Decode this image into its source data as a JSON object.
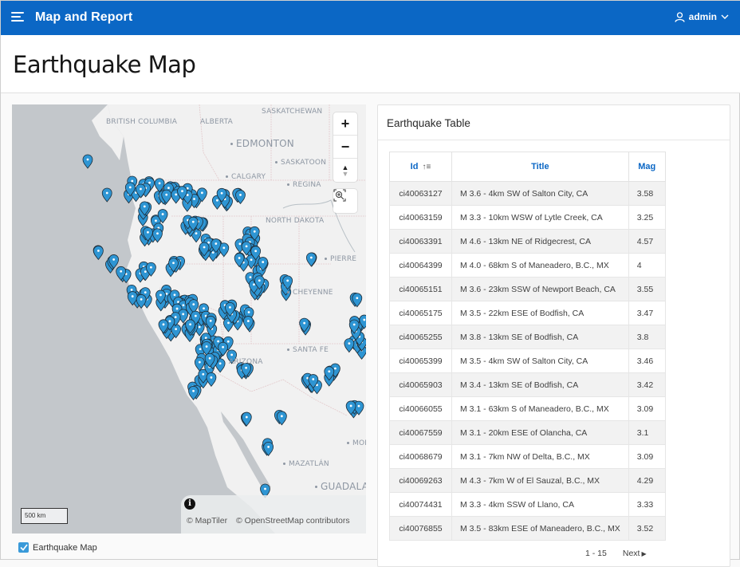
{
  "app": {
    "title": "Map and Report",
    "user": "admin",
    "menu_icon": "hamburger-icon",
    "user_icon": "user-icon"
  },
  "page": {
    "title": "Earthquake Map"
  },
  "map": {
    "labels": {
      "british_columbia": "BRITISH COLUMBIA",
      "alberta": "ALBERTA",
      "saskatchewan": "SASKATCHEWAN",
      "edmonton": "EDMONTON",
      "saskatoon": "SASKATOON",
      "calgary": "CALGARY",
      "regina": "REGINA",
      "north_dakota": "NORTH DAKOTA",
      "pierre": "PIERRE",
      "cheyenne": "CHEYENNE",
      "santa_fe": "SANTA FE",
      "arizona": "ARIZONA",
      "mazatlan": "MAZATLÁN",
      "guadalajara": "GUADALA",
      "monterrey": "MON"
    },
    "controls": {
      "zoom_in": "+",
      "zoom_out": "−",
      "compass": "▲"
    },
    "scale": "500 km",
    "attribution": [
      "© MapTiler",
      "© OpenStreetMap contributors"
    ],
    "layer_toggle": {
      "label": "Earthquake Map",
      "checked": true
    },
    "colors": {
      "marker": "#2e95d3",
      "water": "#c3c7cb",
      "land": "#f1f1f1"
    }
  },
  "report": {
    "title": "Earthquake Table",
    "columns": {
      "id": "Id",
      "id_sort_icon": "↑≡",
      "title": "Title",
      "mag": "Mag"
    },
    "rows": [
      {
        "id": "ci40063127",
        "title": "M 3.6 - 4km SW of Salton City, CA",
        "mag": "3.58"
      },
      {
        "id": "ci40063159",
        "title": "M 3.3 - 10km WSW of Lytle Creek, CA",
        "mag": "3.25"
      },
      {
        "id": "ci40063391",
        "title": "M 4.6 - 13km NE of Ridgecrest, CA",
        "mag": "4.57"
      },
      {
        "id": "ci40064399",
        "title": "M 4.0 - 68km S of Maneadero, B.C., MX",
        "mag": "4"
      },
      {
        "id": "ci40065151",
        "title": "M 3.6 - 23km SSW of Newport Beach, CA",
        "mag": "3.55"
      },
      {
        "id": "ci40065175",
        "title": "M 3.5 - 22km ESE of Bodfish, CA",
        "mag": "3.47"
      },
      {
        "id": "ci40065255",
        "title": "M 3.8 - 13km SE of Bodfish, CA",
        "mag": "3.8"
      },
      {
        "id": "ci40065399",
        "title": "M 3.5 - 4km SW of Salton City, CA",
        "mag": "3.46"
      },
      {
        "id": "ci40065903",
        "title": "M 3.4 - 13km SE of Bodfish, CA",
        "mag": "3.42"
      },
      {
        "id": "ci40066055",
        "title": "M 3.1 - 63km S of Maneadero, B.C., MX",
        "mag": "3.09"
      },
      {
        "id": "ci40067559",
        "title": "M 3.1 - 20km ESE of Olancha, CA",
        "mag": "3.1"
      },
      {
        "id": "ci40068679",
        "title": "M 3.1 - 7km NW of Delta, B.C., MX",
        "mag": "3.09"
      },
      {
        "id": "ci40069263",
        "title": "M 4.3 - 7km W of El Sauzal, B.C., MX",
        "mag": "4.29"
      },
      {
        "id": "ci40074431",
        "title": "M 3.3 - 4km SSW of Llano, CA",
        "mag": "3.33"
      },
      {
        "id": "ci40076855",
        "title": "M 3.5 - 83km ESE of Maneadero, B.C., MX",
        "mag": "3.52"
      }
    ],
    "pagination": {
      "range": "1 - 15",
      "next": "Next"
    }
  }
}
